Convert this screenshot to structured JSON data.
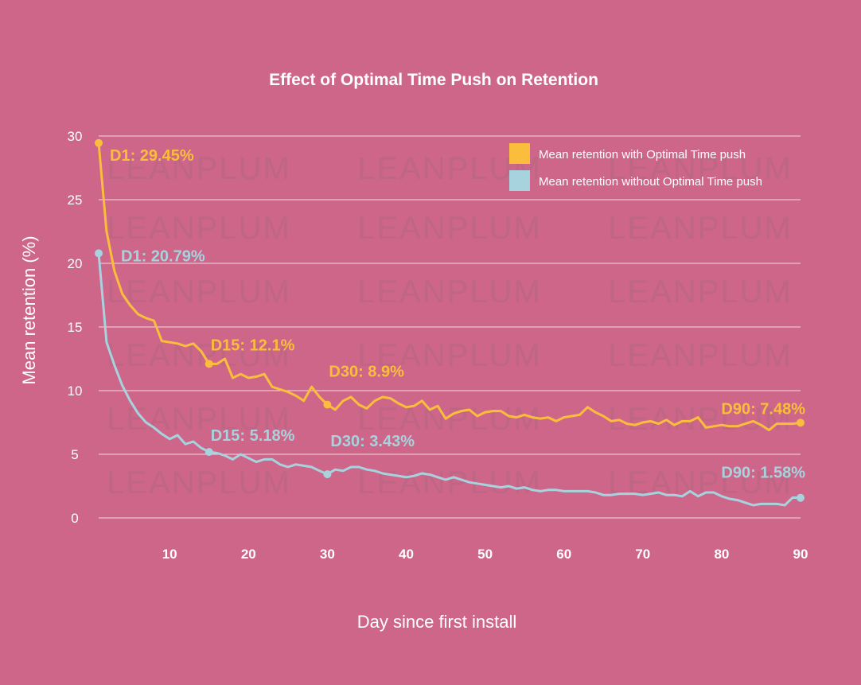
{
  "chart_data": {
    "type": "line",
    "title": "Effect of Optimal Time Push on Retention",
    "xlabel": "Day since first install",
    "ylabel": "Mean retention (%)",
    "xlim": [
      1,
      90
    ],
    "ylim": [
      0,
      30
    ],
    "x_ticks": [
      10,
      20,
      30,
      40,
      50,
      60,
      70,
      80,
      90
    ],
    "y_ticks": [
      0,
      5,
      10,
      15,
      20,
      25,
      30
    ],
    "grid": "horizontal",
    "legend_position": "top-right",
    "watermark": "LEANPLUM",
    "colors": {
      "background": "#cd6688",
      "with_push": "#fbbd3c",
      "without_push": "#a7d3de",
      "grid": "#ffffff",
      "text": "#ffffff"
    },
    "series": [
      {
        "name": "Mean retention with Optimal Time push",
        "color": "#fbbd3c",
        "x": [
          1,
          2,
          3,
          4,
          5,
          6,
          7,
          8,
          9,
          10,
          11,
          12,
          13,
          14,
          15,
          16,
          17,
          18,
          19,
          20,
          21,
          22,
          23,
          24,
          25,
          26,
          27,
          28,
          29,
          30,
          31,
          32,
          33,
          34,
          35,
          36,
          37,
          38,
          39,
          40,
          41,
          42,
          43,
          44,
          45,
          46,
          47,
          48,
          49,
          50,
          51,
          52,
          53,
          54,
          55,
          56,
          57,
          58,
          59,
          60,
          61,
          62,
          63,
          64,
          65,
          66,
          67,
          68,
          69,
          70,
          71,
          72,
          73,
          74,
          75,
          76,
          77,
          78,
          79,
          80,
          81,
          82,
          83,
          84,
          85,
          86,
          87,
          88,
          89,
          90
        ],
        "values": [
          29.45,
          22.5,
          19.4,
          17.6,
          16.7,
          16.0,
          15.7,
          15.5,
          13.9,
          13.8,
          13.7,
          13.5,
          13.7,
          13.1,
          12.1,
          12.1,
          12.5,
          11.0,
          11.3,
          11.0,
          11.1,
          11.3,
          10.3,
          10.1,
          9.9,
          9.6,
          9.2,
          10.3,
          9.5,
          8.9,
          8.5,
          9.2,
          9.5,
          8.9,
          8.6,
          9.2,
          9.5,
          9.4,
          9.0,
          8.7,
          8.8,
          9.2,
          8.5,
          8.8,
          7.8,
          8.2,
          8.4,
          8.5,
          8.0,
          8.3,
          8.4,
          8.4,
          8.0,
          7.9,
          8.1,
          7.9,
          7.8,
          7.9,
          7.6,
          7.9,
          8.0,
          8.1,
          8.7,
          8.3,
          8.0,
          7.6,
          7.7,
          7.4,
          7.3,
          7.5,
          7.6,
          7.4,
          7.7,
          7.3,
          7.6,
          7.6,
          7.9,
          7.1,
          7.2,
          7.3,
          7.2,
          7.2,
          7.4,
          7.6,
          7.3,
          6.9,
          7.4,
          7.4,
          7.4,
          7.48
        ]
      },
      {
        "name": "Mean retention without Optimal Time push",
        "color": "#a7d3de",
        "x": [
          1,
          2,
          3,
          4,
          5,
          6,
          7,
          8,
          9,
          10,
          11,
          12,
          13,
          14,
          15,
          16,
          17,
          18,
          19,
          20,
          21,
          22,
          23,
          24,
          25,
          26,
          27,
          28,
          29,
          30,
          31,
          32,
          33,
          34,
          35,
          36,
          37,
          38,
          39,
          40,
          41,
          42,
          43,
          44,
          45,
          46,
          47,
          48,
          49,
          50,
          51,
          52,
          53,
          54,
          55,
          56,
          57,
          58,
          59,
          60,
          61,
          62,
          63,
          64,
          65,
          66,
          67,
          68,
          69,
          70,
          71,
          72,
          73,
          74,
          75,
          76,
          77,
          78,
          79,
          80,
          81,
          82,
          83,
          84,
          85,
          86,
          87,
          88,
          89,
          90
        ],
        "values": [
          20.79,
          13.8,
          12.0,
          10.4,
          9.2,
          8.2,
          7.5,
          7.1,
          6.6,
          6.2,
          6.5,
          5.8,
          6.0,
          5.5,
          5.18,
          5.1,
          4.9,
          4.6,
          5.0,
          4.7,
          4.4,
          4.6,
          4.6,
          4.2,
          4.0,
          4.2,
          4.1,
          4.0,
          3.7,
          3.43,
          3.8,
          3.7,
          4.0,
          4.0,
          3.8,
          3.7,
          3.5,
          3.4,
          3.3,
          3.2,
          3.3,
          3.5,
          3.4,
          3.2,
          3.0,
          3.2,
          3.0,
          2.8,
          2.7,
          2.6,
          2.5,
          2.4,
          2.5,
          2.3,
          2.4,
          2.2,
          2.1,
          2.2,
          2.2,
          2.1,
          2.1,
          2.1,
          2.1,
          2.0,
          1.8,
          1.8,
          1.9,
          1.9,
          1.9,
          1.8,
          1.9,
          2.0,
          1.8,
          1.8,
          1.7,
          2.1,
          1.7,
          2.0,
          2.0,
          1.7,
          1.5,
          1.4,
          1.2,
          1.0,
          1.1,
          1.1,
          1.1,
          1.0,
          1.6,
          1.58
        ]
      }
    ],
    "annotations": [
      {
        "series": 0,
        "x": 1,
        "y": 29.45,
        "text": "D1: 29.45%"
      },
      {
        "series": 0,
        "x": 15,
        "y": 12.1,
        "text": "D15: 12.1%"
      },
      {
        "series": 0,
        "x": 30,
        "y": 8.9,
        "text": "D30: 8.9%"
      },
      {
        "series": 0,
        "x": 90,
        "y": 7.48,
        "text": "D90: 7.48%"
      },
      {
        "series": 1,
        "x": 1,
        "y": 20.79,
        "text": "D1: 20.79%"
      },
      {
        "series": 1,
        "x": 15,
        "y": 5.18,
        "text": "D15: 5.18%"
      },
      {
        "series": 1,
        "x": 30,
        "y": 3.43,
        "text": "D30: 3.43%"
      },
      {
        "series": 1,
        "x": 90,
        "y": 1.58,
        "text": "D90: 1.58%"
      }
    ]
  }
}
